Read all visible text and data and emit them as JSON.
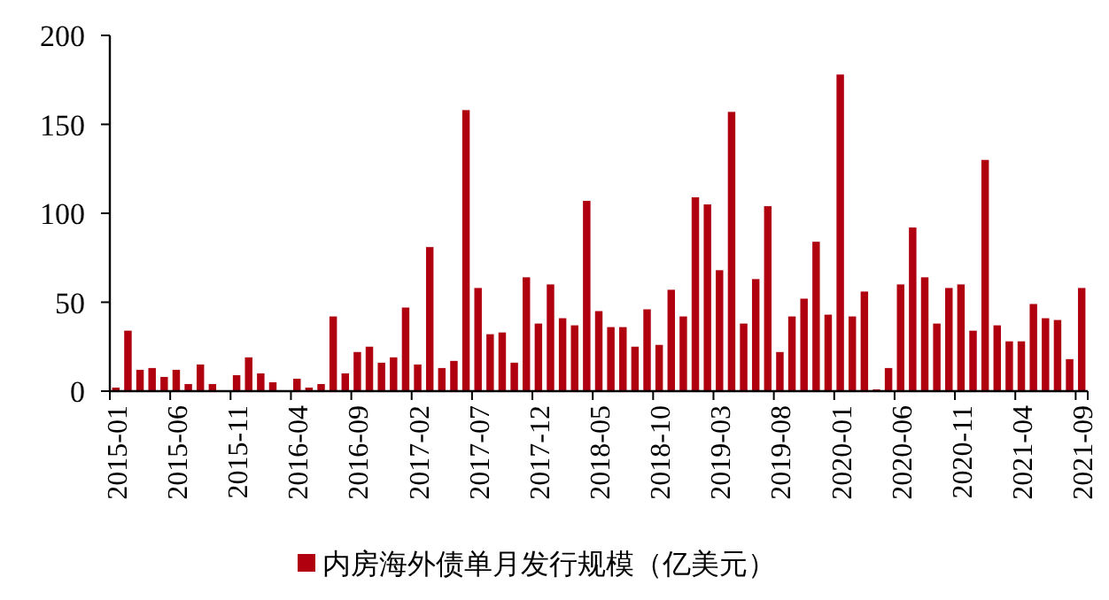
{
  "chart_data": {
    "type": "bar",
    "categories": [
      "2015-01",
      null,
      null,
      null,
      null,
      "2015-06",
      null,
      null,
      null,
      null,
      "2015-11",
      null,
      null,
      null,
      null,
      "2016-04",
      null,
      null,
      null,
      null,
      "2016-09",
      null,
      null,
      null,
      null,
      "2017-02",
      null,
      null,
      null,
      null,
      "2017-07",
      null,
      null,
      null,
      null,
      "2017-12",
      null,
      null,
      null,
      null,
      "2018-05",
      null,
      null,
      null,
      null,
      "2018-10",
      null,
      null,
      null,
      null,
      "2019-03",
      null,
      null,
      null,
      null,
      "2019-08",
      null,
      null,
      null,
      null,
      "2020-01",
      null,
      null,
      null,
      null,
      "2020-06",
      null,
      null,
      null,
      null,
      "2020-11",
      null,
      null,
      null,
      null,
      "2021-04",
      null,
      null,
      null,
      null,
      "2021-09"
    ],
    "series": [
      {
        "name": "内房海外债单月发行规模（亿美元）",
        "color": "#b0000f",
        "values": [
          2,
          34,
          12,
          13,
          8,
          12,
          4,
          15,
          4,
          0,
          9,
          19,
          10,
          5,
          0,
          7,
          2,
          4,
          42,
          10,
          22,
          25,
          16,
          19,
          47,
          15,
          81,
          13,
          17,
          158,
          58,
          32,
          33,
          16,
          64,
          38,
          60,
          41,
          37,
          107,
          45,
          36,
          36,
          25,
          46,
          26,
          57,
          42,
          109,
          105,
          68,
          157,
          38,
          63,
          104,
          22,
          42,
          52,
          84,
          43,
          178,
          42,
          56,
          1,
          13,
          60,
          92,
          64,
          38,
          58,
          60,
          34,
          130,
          37,
          28,
          28,
          49,
          41,
          40,
          18,
          58
        ]
      }
    ],
    "ylim": [
      0,
      200
    ],
    "yticks": [
      0,
      50,
      100,
      150,
      200
    ],
    "legend": "bottom",
    "grid": false
  }
}
